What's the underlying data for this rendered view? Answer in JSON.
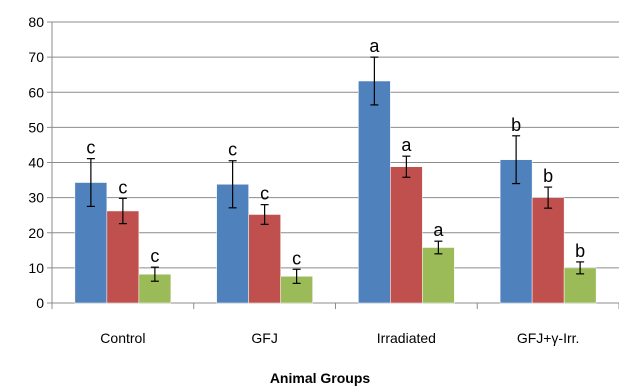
{
  "chart_data": {
    "type": "bar",
    "title": "",
    "xlabel": "Animal Groups",
    "ylabel": "",
    "ylim": [
      0,
      80
    ],
    "yticks": [
      0,
      10,
      20,
      30,
      40,
      50,
      60,
      70,
      80
    ],
    "grid": "horizontal",
    "categories": [
      "Control",
      "GFJ",
      "Irradiated",
      "GFJ+γ-Irr."
    ],
    "series": [
      {
        "color": "#4F81BD",
        "values": [
          34.3,
          33.8,
          63.2,
          40.8
        ],
        "errors": [
          6.8,
          6.7,
          6.8,
          6.8
        ],
        "labels": [
          "c",
          "c",
          "a",
          "b"
        ]
      },
      {
        "color": "#C0504D",
        "values": [
          26.2,
          25.2,
          38.8,
          30.0
        ],
        "errors": [
          3.6,
          2.8,
          3.0,
          3.0
        ],
        "labels": [
          "c",
          "c",
          "a",
          "b"
        ]
      },
      {
        "color": "#9BBB59",
        "values": [
          8.2,
          7.6,
          15.8,
          10.0
        ],
        "errors": [
          2.0,
          2.0,
          1.8,
          1.7
        ],
        "labels": [
          "c",
          "c",
          "a",
          "b"
        ]
      }
    ]
  }
}
